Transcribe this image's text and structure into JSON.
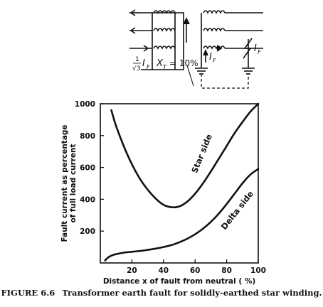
{
  "figure": {
    "number": "FIGURE 6.6",
    "caption": "Transformer earth fault for solidly-earthed star winding."
  },
  "diagram": {
    "current_label": "1/√3 I_F",
    "reactance_label": "X_T = 10%",
    "fault_current_label_secondary": "I_F",
    "fault_current_label_fault": "I_F",
    "sqrt3": "√3",
    "one": "1",
    "I": "I",
    "F": "F",
    "X": "X",
    "T": "T",
    "eq": "= 10%"
  },
  "chart_data": {
    "type": "line",
    "title": "",
    "xlabel": "Distance x of fault from neutral ( %)",
    "ylabel_lines": [
      "Fault current as percentage",
      "of full load current"
    ],
    "xlim": [
      0,
      100
    ],
    "ylim": [
      0,
      1000
    ],
    "xticks": [
      20,
      40,
      60,
      80,
      100
    ],
    "yticks": [
      200,
      400,
      600,
      800,
      1000
    ],
    "grid": false,
    "series": [
      {
        "name": "Star side",
        "x": [
          7,
          10,
          15,
          20,
          25,
          30,
          35,
          40,
          45,
          50,
          55,
          60,
          65,
          70,
          75,
          80,
          85,
          90,
          95,
          100
        ],
        "y": [
          960,
          860,
          730,
          620,
          530,
          460,
          405,
          365,
          350,
          355,
          385,
          435,
          500,
          575,
          655,
          735,
          815,
          885,
          950,
          1000
        ]
      },
      {
        "name": "Delta side",
        "x": [
          3,
          5,
          8,
          10,
          15,
          20,
          25,
          30,
          35,
          40,
          45,
          50,
          55,
          60,
          65,
          70,
          75,
          80,
          85,
          90,
          95,
          100
        ],
        "y": [
          15,
          35,
          50,
          55,
          65,
          70,
          75,
          82,
          90,
          100,
          112,
          130,
          152,
          180,
          215,
          258,
          310,
          370,
          435,
          500,
          555,
          590
        ]
      }
    ]
  }
}
